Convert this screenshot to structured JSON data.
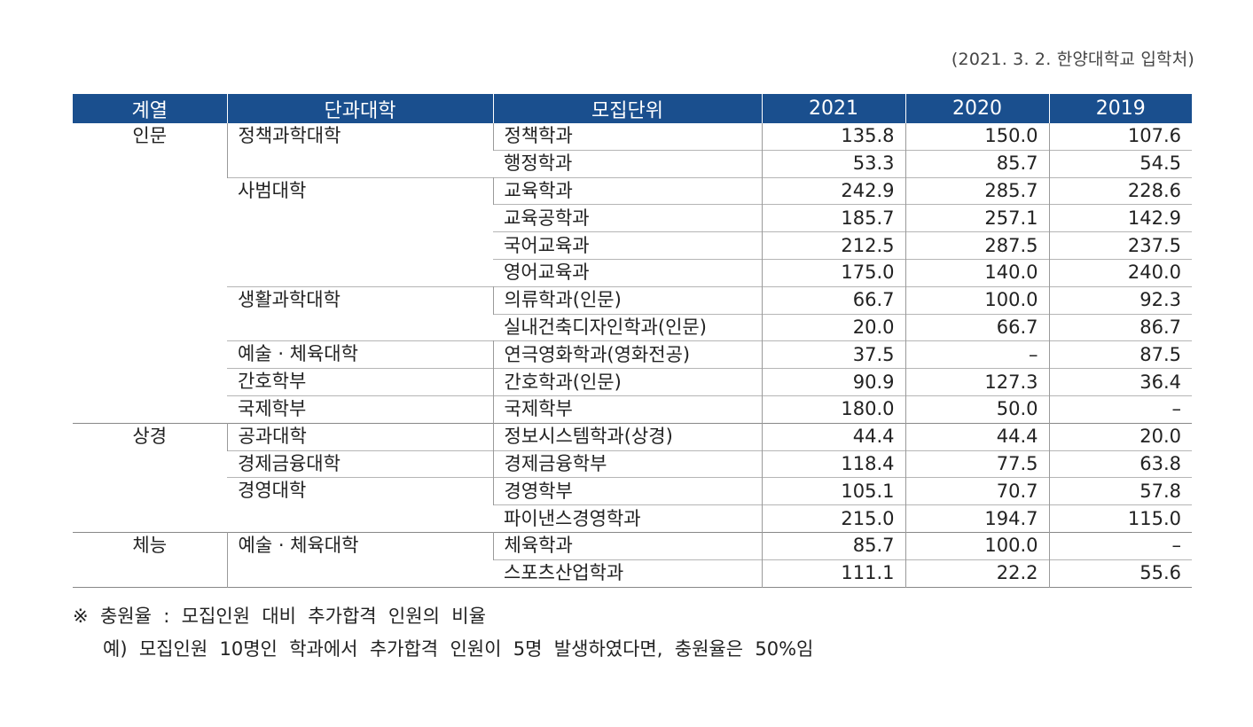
{
  "source": "(2021. 3. 2. 한양대학교 입학처)",
  "headers": [
    "계열",
    "단과대학",
    "모집단위",
    "2021",
    "2020",
    "2019"
  ],
  "rows": [
    {
      "category": "인문",
      "college": "정책과학대학",
      "unit": "정책학과",
      "y2021": "135.8",
      "y2020": "150.0",
      "y2019": "107.6"
    },
    {
      "category": "",
      "college": "",
      "unit": "행정학과",
      "y2021": "53.3",
      "y2020": "85.7",
      "y2019": "54.5"
    },
    {
      "category": "",
      "college": "사범대학",
      "unit": "교육학과",
      "y2021": "242.9",
      "y2020": "285.7",
      "y2019": "228.6"
    },
    {
      "category": "",
      "college": "",
      "unit": "교육공학과",
      "y2021": "185.7",
      "y2020": "257.1",
      "y2019": "142.9"
    },
    {
      "category": "",
      "college": "",
      "unit": "국어교육과",
      "y2021": "212.5",
      "y2020": "287.5",
      "y2019": "237.5"
    },
    {
      "category": "",
      "college": "",
      "unit": "영어교육과",
      "y2021": "175.0",
      "y2020": "140.0",
      "y2019": "240.0"
    },
    {
      "category": "",
      "college": "생활과학대학",
      "unit": "의류학과(인문)",
      "y2021": "66.7",
      "y2020": "100.0",
      "y2019": "92.3"
    },
    {
      "category": "",
      "college": "",
      "unit": "실내건축디자인학과(인문)",
      "y2021": "20.0",
      "y2020": "66.7",
      "y2019": "86.7"
    },
    {
      "category": "",
      "college": "예술 · 체육대학",
      "unit": "연극영화학과(영화전공)",
      "y2021": "37.5",
      "y2020": "–",
      "y2019": "87.5"
    },
    {
      "category": "",
      "college": "간호학부",
      "unit": "간호학과(인문)",
      "y2021": "90.9",
      "y2020": "127.3",
      "y2019": "36.4"
    },
    {
      "category": "",
      "college": "국제학부",
      "unit": "국제학부",
      "y2021": "180.0",
      "y2020": "50.0",
      "y2019": "–"
    },
    {
      "category": "상경",
      "college": "공과대학",
      "unit": "정보시스템학과(상경)",
      "y2021": "44.4",
      "y2020": "44.4",
      "y2019": "20.0"
    },
    {
      "category": "",
      "college": "경제금융대학",
      "unit": "경제금융학부",
      "y2021": "118.4",
      "y2020": "77.5",
      "y2019": "63.8"
    },
    {
      "category": "",
      "college": "경영대학",
      "unit": "경영학부",
      "y2021": "105.1",
      "y2020": "70.7",
      "y2019": "57.8"
    },
    {
      "category": "",
      "college": "",
      "unit": "파이낸스경영학과",
      "y2021": "215.0",
      "y2020": "194.7",
      "y2019": "115.0"
    },
    {
      "category": "체능",
      "college": "예술 · 체육대학",
      "unit": "체육학과",
      "y2021": "85.7",
      "y2020": "100.0",
      "y2019": "–"
    },
    {
      "category": "",
      "college": "",
      "unit": "스포츠산업학과",
      "y2021": "111.1",
      "y2020": "22.2",
      "y2019": "55.6"
    }
  ],
  "notes": {
    "line1": "※  충원율  :  모집인원  대비  추가합격  인원의  비율",
    "line2": "예)  모집인원  10명인  학과에서  추가합격  인원이  5명  발생하였다면,  충원율은  50%임"
  }
}
